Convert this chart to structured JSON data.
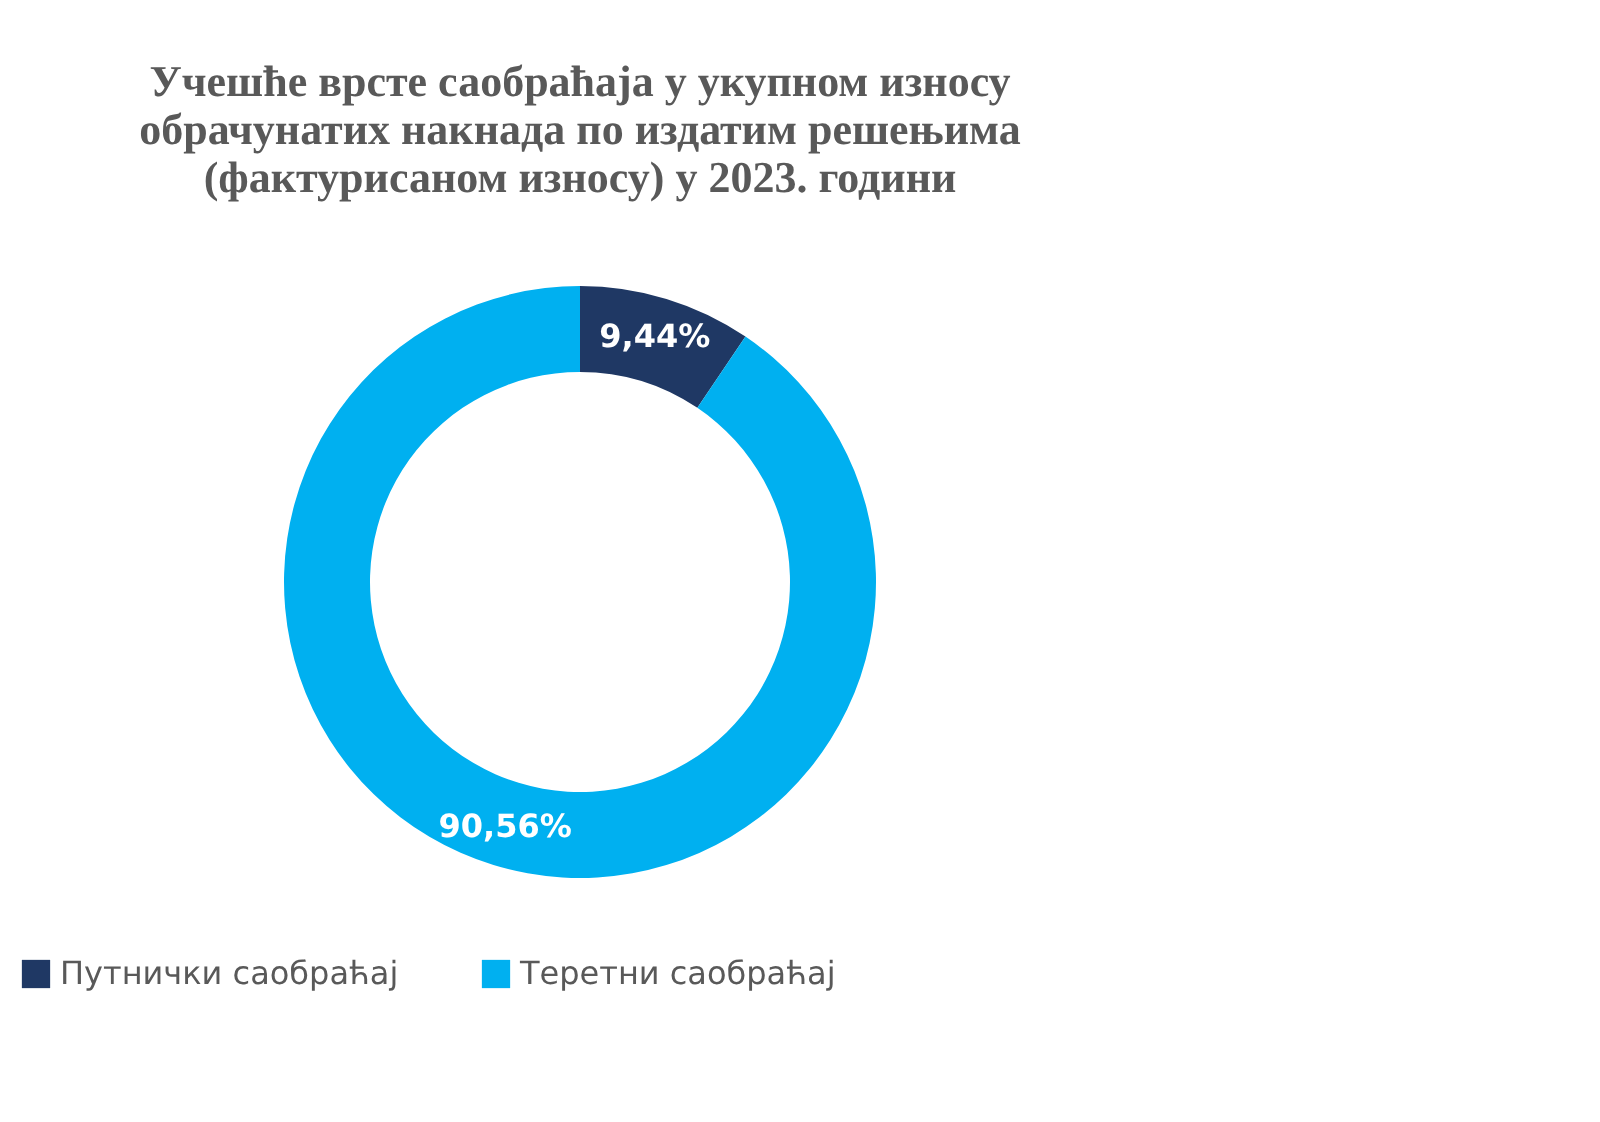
{
  "chart_data": {
    "type": "donut",
    "title": [
      "Учешће врсте саобраћаја у укупном износу",
      "обрачунатих накнада по издатим решењима",
      "(фактурисаном износу)  у 2023. години"
    ],
    "categories": [
      "Путнички саобраћај",
      "Теретни саобраћај"
    ],
    "values": [
      9.44,
      90.56
    ],
    "colors": [
      "#1f3864",
      "#00b0f0"
    ],
    "value_labels": [
      "9,44%",
      "90,56%"
    ],
    "legend": "bottom"
  }
}
